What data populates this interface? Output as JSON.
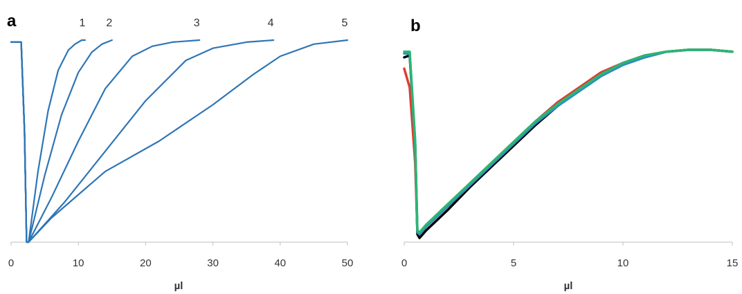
{
  "chart_data": [
    {
      "panel_label": "a",
      "type": "line",
      "xlabel": "µl",
      "ylabel": "",
      "xlim": [
        0,
        50
      ],
      "xticks": [
        "0",
        "10",
        "20",
        "30",
        "40",
        "50"
      ],
      "grid": false,
      "series": [
        {
          "name": "1",
          "color": "#2e75b6",
          "x": [
            0,
            1.5,
            2.0,
            2.3,
            2.6,
            4,
            5.5,
            7,
            8.5,
            9.5,
            10.5,
            11
          ],
          "y": [
            0.99,
            0.99,
            0.55,
            0.0,
            0.0,
            0.35,
            0.65,
            0.85,
            0.95,
            0.98,
            1.0,
            1.0
          ]
        },
        {
          "name": "2",
          "color": "#2e75b6",
          "x": [
            0,
            1.5,
            2.0,
            2.3,
            2.6,
            5,
            7.5,
            10,
            12,
            13.5,
            15
          ],
          "y": [
            0.99,
            0.99,
            0.55,
            0.0,
            0.0,
            0.33,
            0.63,
            0.84,
            0.94,
            0.98,
            1.0
          ]
        },
        {
          "name": "3",
          "color": "#2e75b6",
          "x": [
            0,
            1.5,
            2.0,
            2.3,
            2.6,
            6,
            10,
            14,
            18,
            21,
            24,
            28
          ],
          "y": [
            0.99,
            0.99,
            0.55,
            0.0,
            0.0,
            0.22,
            0.5,
            0.76,
            0.92,
            0.97,
            0.99,
            1.0
          ]
        },
        {
          "name": "4",
          "color": "#2e75b6",
          "x": [
            0,
            1.5,
            2.0,
            2.3,
            2.6,
            8,
            14,
            20,
            26,
            30,
            35,
            39
          ],
          "y": [
            0.99,
            0.99,
            0.55,
            0.0,
            0.0,
            0.2,
            0.45,
            0.7,
            0.9,
            0.96,
            0.99,
            1.0
          ]
        },
        {
          "name": "5",
          "color": "#2e75b6",
          "x": [
            0,
            1.5,
            2.0,
            2.3,
            2.6,
            6,
            14,
            22,
            30,
            36,
            40,
            45,
            50
          ],
          "y": [
            0.99,
            0.99,
            0.55,
            0.0,
            0.0,
            0.12,
            0.35,
            0.5,
            0.68,
            0.83,
            0.92,
            0.98,
            1.0
          ]
        }
      ]
    },
    {
      "panel_label": "b",
      "type": "line",
      "xlabel": "µl",
      "ylabel": "",
      "xlim": [
        0,
        15
      ],
      "xticks": [
        "0",
        "5",
        "10",
        "15"
      ],
      "grid": false,
      "series": [
        {
          "name": "",
          "color": "#000000",
          "x": [
            0,
            0.25,
            0.5,
            0.6,
            0.7,
            1,
            2,
            3,
            4,
            5,
            6,
            7,
            8,
            9,
            10,
            11,
            12,
            13,
            14,
            15
          ],
          "y": [
            0.96,
            0.97,
            0.5,
            0.02,
            0.0,
            0.04,
            0.15,
            0.27,
            0.38,
            0.49,
            0.6,
            0.7,
            0.79,
            0.87,
            0.93,
            0.97,
            0.99,
            1.0,
            1.0,
            0.99
          ]
        },
        {
          "name": "",
          "color": "#e03c31",
          "x": [
            0,
            0.25,
            0.5,
            0.6,
            0.7,
            1,
            2,
            3,
            4,
            5,
            6,
            7,
            8,
            9,
            10,
            11,
            12,
            13,
            14,
            15
          ],
          "y": [
            0.9,
            0.8,
            0.4,
            0.03,
            0.02,
            0.07,
            0.18,
            0.29,
            0.4,
            0.51,
            0.62,
            0.72,
            0.8,
            0.88,
            0.93,
            0.97,
            0.99,
            1.0,
            1.0,
            0.99
          ]
        },
        {
          "name": "",
          "color": "#2e8bc0",
          "x": [
            0,
            0.25,
            0.5,
            0.6,
            0.7,
            1,
            2,
            3,
            4,
            5,
            6,
            7,
            8,
            9,
            10,
            11,
            12,
            13,
            14,
            15
          ],
          "y": [
            0.98,
            0.98,
            0.5,
            0.03,
            0.02,
            0.06,
            0.17,
            0.28,
            0.39,
            0.5,
            0.61,
            0.7,
            0.78,
            0.86,
            0.92,
            0.96,
            0.99,
            1.0,
            1.0,
            0.99
          ]
        },
        {
          "name": "",
          "color": "#2bb673",
          "x": [
            0,
            0.25,
            0.5,
            0.6,
            0.7,
            1,
            2,
            3,
            4,
            5,
            6,
            7,
            8,
            9,
            10,
            11,
            12,
            13,
            14,
            15
          ],
          "y": [
            0.99,
            0.99,
            0.52,
            0.04,
            0.03,
            0.07,
            0.18,
            0.29,
            0.4,
            0.51,
            0.62,
            0.71,
            0.79,
            0.87,
            0.93,
            0.97,
            0.99,
            1.0,
            1.0,
            0.99
          ]
        }
      ]
    }
  ]
}
